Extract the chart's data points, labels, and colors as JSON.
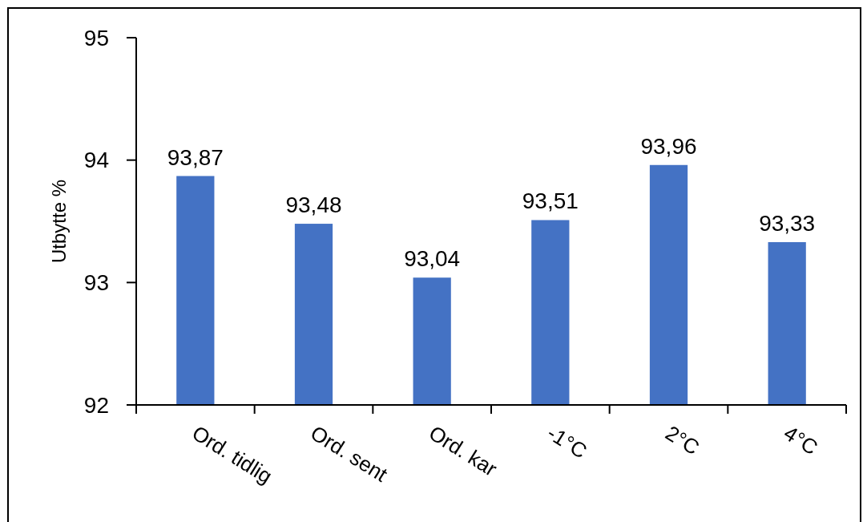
{
  "chart_data": {
    "type": "bar",
    "ylabel": "Utbytte %",
    "categories": [
      "Ord. tidlig",
      "Ord. sent",
      "Ord. kar",
      "-1°C",
      "2°C",
      "4°C"
    ],
    "values": [
      93.87,
      93.48,
      93.04,
      93.51,
      93.96,
      93.33
    ],
    "value_labels": [
      "93,87",
      "93,48",
      "93,04",
      "93,51",
      "93,96",
      "93,33"
    ],
    "color": "#4472c4",
    "ylim": [
      92,
      95
    ],
    "yticks": [
      92,
      93,
      94,
      95
    ]
  }
}
